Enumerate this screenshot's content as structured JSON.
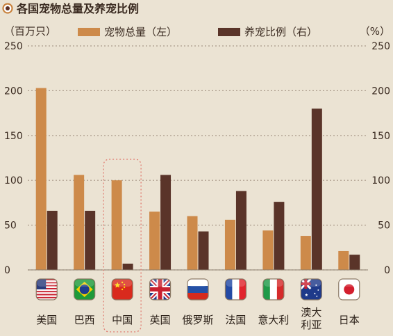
{
  "title": "各国宠物总量及养宠比例",
  "left_unit": "（百万只）",
  "right_unit": "（%）",
  "colors": {
    "primary": "#cd8a4a",
    "secondary": "#5a3429",
    "highlight_border": "#e07a6f"
  },
  "chart_data": {
    "type": "bar",
    "title": "各国宠物总量及养宠比例",
    "categories": [
      "美国",
      "巴西",
      "中国",
      "英国",
      "俄罗斯",
      "法国",
      "意大利",
      "澳大利亚",
      "日本"
    ],
    "category_lines": [
      [
        "美国"
      ],
      [
        "巴西"
      ],
      [
        "中国"
      ],
      [
        "英国"
      ],
      [
        "俄罗斯"
      ],
      [
        "法国"
      ],
      [
        "意大利"
      ],
      [
        "澳大",
        "利亚"
      ],
      [
        "日本"
      ]
    ],
    "flag_icons": [
      "us-flag-icon",
      "brazil-flag-icon",
      "china-flag-icon",
      "uk-flag-icon",
      "russia-flag-icon",
      "france-flag-icon",
      "italy-flag-icon",
      "australia-flag-icon",
      "japan-flag-icon"
    ],
    "series": [
      {
        "name": "宠物总量（左）",
        "axis": "left",
        "values": [
          203,
          106,
          100,
          65,
          60,
          56,
          44,
          38,
          21
        ]
      },
      {
        "name": "养宠比例（右）",
        "axis": "right",
        "values": [
          66,
          66,
          7,
          106,
          43,
          88,
          76,
          180,
          17
        ]
      }
    ],
    "ylim": [
      0,
      250
    ],
    "yticks": [
      "0",
      "50",
      "100",
      "150",
      "200",
      "250"
    ],
    "y2lim": [
      0,
      250
    ],
    "y2ticks": [
      "0",
      "50",
      "100",
      "150",
      "200",
      "250"
    ],
    "legend_position": "top",
    "highlight_category": "中国",
    "grid": true
  }
}
